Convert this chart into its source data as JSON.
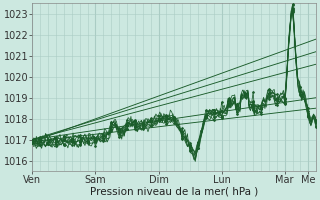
{
  "bg_color": "#cce8e0",
  "plot_bg_color": "#cce8e0",
  "grid_color": "#aaccc4",
  "line_color": "#1a5c2a",
  "marker_color": "#1a5c2a",
  "ylim": [
    1015.5,
    1023.5
  ],
  "yticks": [
    1016,
    1017,
    1018,
    1019,
    1020,
    1021,
    1022,
    1023
  ],
  "xlabel": "Pression niveau de la mer( hPa )",
  "day_labels": [
    "Ven",
    "Sam",
    "Dim",
    "Lun",
    "Mar",
    "Me"
  ],
  "day_positions": [
    0,
    48,
    96,
    144,
    192,
    210
  ],
  "total_points": 216,
  "axis_fontsize": 7.0
}
